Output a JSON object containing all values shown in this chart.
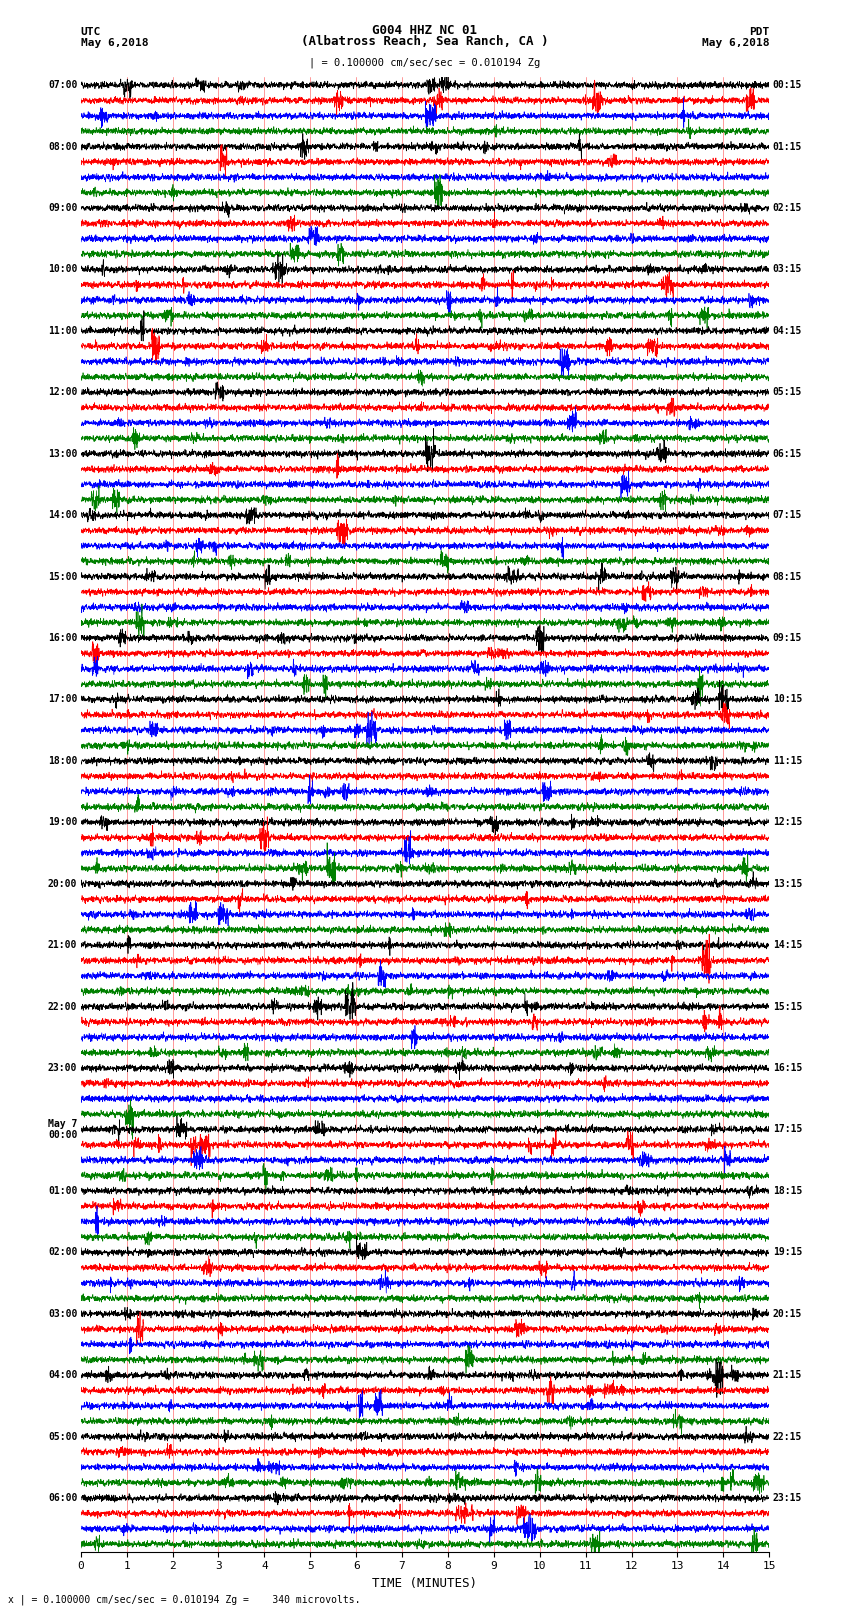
{
  "title_line1": "G004 HHZ NC 01",
  "title_line2": "(Albatross Reach, Sea Ranch, CA )",
  "scale_text": "| = 0.100000 cm/sec/sec = 0.010194 Zg",
  "left_header": "UTC",
  "left_date": "May 6,2018",
  "right_header": "PDT",
  "right_date": "May 6,2018",
  "xlabel": "TIME (MINUTES)",
  "footer": "x | = 0.100000 cm/sec/sec = 0.010194 Zg =    340 microvolts.",
  "xlim": [
    0,
    15
  ],
  "xticks": [
    0,
    1,
    2,
    3,
    4,
    5,
    6,
    7,
    8,
    9,
    10,
    11,
    12,
    13,
    14,
    15
  ],
  "trace_colors": [
    "black",
    "red",
    "blue",
    "green"
  ],
  "n_groups": 24,
  "noise_amplitude": 0.35,
  "figure_width": 8.5,
  "figure_height": 16.13,
  "left_times": [
    "07:00",
    "08:00",
    "09:00",
    "10:00",
    "11:00",
    "12:00",
    "13:00",
    "14:00",
    "15:00",
    "16:00",
    "17:00",
    "18:00",
    "19:00",
    "20:00",
    "21:00",
    "22:00",
    "23:00",
    "May 7\n00:00",
    "01:00",
    "02:00",
    "03:00",
    "04:00",
    "05:00",
    "06:00"
  ],
  "right_times": [
    "00:15",
    "01:15",
    "02:15",
    "03:15",
    "04:15",
    "05:15",
    "06:15",
    "07:15",
    "08:15",
    "09:15",
    "10:15",
    "11:15",
    "12:15",
    "13:15",
    "14:15",
    "15:15",
    "16:15",
    "17:15",
    "18:15",
    "19:15",
    "20:15",
    "21:15",
    "22:15",
    "23:15"
  ],
  "bg_color": "#ffffff",
  "trace_lw": 0.5
}
